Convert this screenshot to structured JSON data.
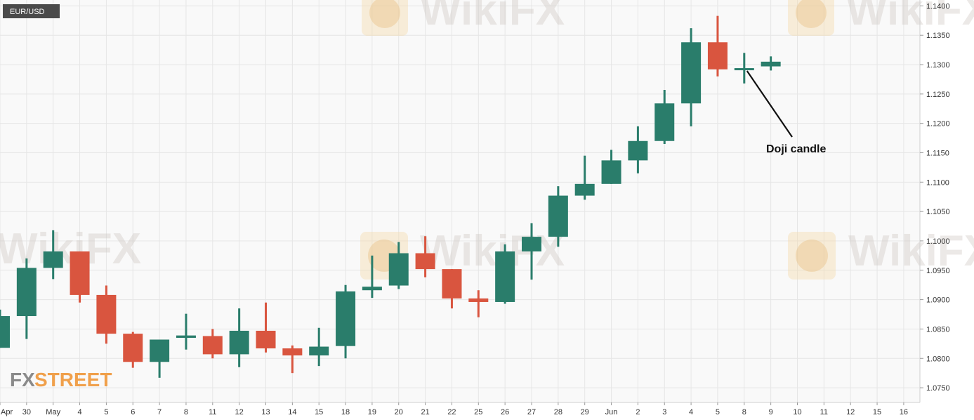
{
  "symbol": "EUR/USD",
  "annotation": "Doji candle",
  "watermark": "WikiFX",
  "brand": {
    "part1": "FX",
    "part2": "STREET"
  },
  "colors": {
    "up": "#2a7d6b",
    "down": "#d9553f",
    "grid": "#e6e6e6",
    "plot_bg": "#f9f9f9",
    "label_bg": "#4a4a4a"
  },
  "chart_data": {
    "type": "candlestick",
    "ylim": [
      1.0725,
      1.141
    ],
    "y_ticks": [
      "1.1400",
      "1.1350",
      "1.1300",
      "1.1250",
      "1.1200",
      "1.1150",
      "1.1100",
      "1.1050",
      "1.1000",
      "1.0950",
      "1.0900",
      "1.0850",
      "1.0800",
      "1.0750"
    ],
    "x_labels": [
      "Apr",
      "30",
      "May",
      "4",
      "5",
      "6",
      "7",
      "8",
      "11",
      "12",
      "13",
      "14",
      "15",
      "18",
      "19",
      "20",
      "21",
      "22",
      "25",
      "26",
      "27",
      "28",
      "29",
      "Jun",
      "2",
      "3",
      "4",
      "5",
      "8",
      "9",
      "10",
      "11",
      "12",
      "15",
      "16"
    ],
    "candles": [
      {
        "date": "29 Apr",
        "open": 1.0818,
        "high": 1.0883,
        "low": 1.0818,
        "close": 1.0872
      },
      {
        "date": "30",
        "open": 1.0872,
        "high": 1.097,
        "low": 1.0833,
        "close": 1.0954
      },
      {
        "date": "1 May",
        "open": 1.0954,
        "high": 1.1018,
        "low": 1.0935,
        "close": 1.0982
      },
      {
        "date": "4",
        "open": 1.0982,
        "high": 1.0982,
        "low": 1.0895,
        "close": 1.0908
      },
      {
        "date": "5",
        "open": 1.0908,
        "high": 1.0924,
        "low": 1.0825,
        "close": 1.0842
      },
      {
        "date": "6",
        "open": 1.0842,
        "high": 1.0845,
        "low": 1.0784,
        "close": 1.0794
      },
      {
        "date": "7",
        "open": 1.0794,
        "high": 1.0832,
        "low": 1.0767,
        "close": 1.0832
      },
      {
        "date": "8",
        "open": 1.0835,
        "high": 1.0876,
        "low": 1.0815,
        "close": 1.0839
      },
      {
        "date": "11",
        "open": 1.0838,
        "high": 1.085,
        "low": 1.08,
        "close": 1.0807
      },
      {
        "date": "12",
        "open": 1.0807,
        "high": 1.0885,
        "low": 1.0785,
        "close": 1.0847
      },
      {
        "date": "13",
        "open": 1.0847,
        "high": 1.0895,
        "low": 1.081,
        "close": 1.0817
      },
      {
        "date": "14",
        "open": 1.0817,
        "high": 1.0822,
        "low": 1.0775,
        "close": 1.0805
      },
      {
        "date": "15",
        "open": 1.0805,
        "high": 1.0852,
        "low": 1.0787,
        "close": 1.082
      },
      {
        "date": "18",
        "open": 1.0821,
        "high": 1.0925,
        "low": 1.08,
        "close": 1.0914
      },
      {
        "date": "19",
        "open": 1.0916,
        "high": 1.0975,
        "low": 1.0903,
        "close": 1.0922
      },
      {
        "date": "20",
        "open": 1.0924,
        "high": 1.0998,
        "low": 1.0918,
        "close": 1.0979
      },
      {
        "date": "21",
        "open": 1.0979,
        "high": 1.1008,
        "low": 1.0938,
        "close": 1.0952
      },
      {
        "date": "22",
        "open": 1.0952,
        "high": 1.0952,
        "low": 1.0885,
        "close": 1.0902
      },
      {
        "date": "25",
        "open": 1.0902,
        "high": 1.0916,
        "low": 1.087,
        "close": 1.0896
      },
      {
        "date": "26",
        "open": 1.0896,
        "high": 1.0994,
        "low": 1.0893,
        "close": 1.0982
      },
      {
        "date": "27",
        "open": 1.0982,
        "high": 1.103,
        "low": 1.0934,
        "close": 1.1007
      },
      {
        "date": "28",
        "open": 1.1007,
        "high": 1.1093,
        "low": 1.099,
        "close": 1.1077
      },
      {
        "date": "29",
        "open": 1.1077,
        "high": 1.1145,
        "low": 1.107,
        "close": 1.1097
      },
      {
        "date": "1 Jun",
        "open": 1.1097,
        "high": 1.1155,
        "low": 1.1097,
        "close": 1.1137
      },
      {
        "date": "2",
        "open": 1.1137,
        "high": 1.1195,
        "low": 1.1115,
        "close": 1.117
      },
      {
        "date": "3",
        "open": 1.117,
        "high": 1.1257,
        "low": 1.1165,
        "close": 1.1234
      },
      {
        "date": "4",
        "open": 1.1234,
        "high": 1.1362,
        "low": 1.1195,
        "close": 1.1338
      },
      {
        "date": "5",
        "open": 1.1338,
        "high": 1.1383,
        "low": 1.128,
        "close": 1.1292
      },
      {
        "date": "8",
        "open": 1.1292,
        "high": 1.132,
        "low": 1.1268,
        "close": 1.1294
      },
      {
        "date": "9",
        "open": 1.1297,
        "high": 1.1314,
        "low": 1.129,
        "close": 1.1305
      }
    ]
  }
}
